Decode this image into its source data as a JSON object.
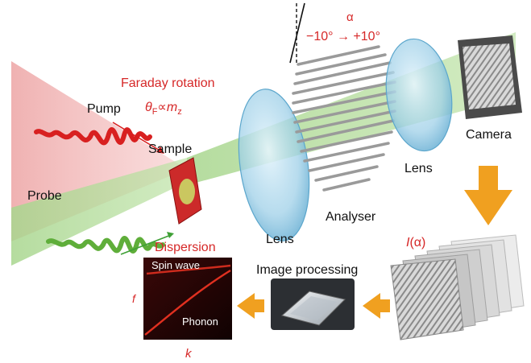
{
  "labels": {
    "pump": "Pump",
    "probe": "Probe",
    "sample": "Sample",
    "faraday_title": "Faraday rotation",
    "faraday_theta": "θ",
    "faraday_sub": "F",
    "faraday_prop": "∝",
    "faraday_m": "m",
    "faraday_msub": "z",
    "lens1": "Lens",
    "lens2": "Lens",
    "analyser": "Analyser",
    "camera": "Camera",
    "alpha": "α",
    "alpha_range": "−10° → +10°",
    "dispersion": "Dispersion",
    "spin_wave": "Spin wave",
    "phonon": "Phonon",
    "axis_f": "f",
    "axis_k": "k",
    "image_processing": "Image processing",
    "I_symbol": "I",
    "I_arg": "(α)"
  },
  "colors": {
    "red_label": "#d62828",
    "pump_beam": "#f0b8b8",
    "probe_beam": "#b9dca0",
    "pump_wave": "#d82020",
    "probe_wave": "#5fae3a",
    "lens_fill": "#a9d7ec",
    "orange_arrow": "#f0a020",
    "dispersion_bg": "#1a0505",
    "dispersion_line": "#e03020"
  },
  "icons": {
    "pump_arrow": "arrow-right-icon",
    "probe_arrow": "arrow-right-icon",
    "down_arrow": "big-arrow-down-icon",
    "left_arrows": "big-arrow-left-icon",
    "chip": "chip-icon"
  }
}
